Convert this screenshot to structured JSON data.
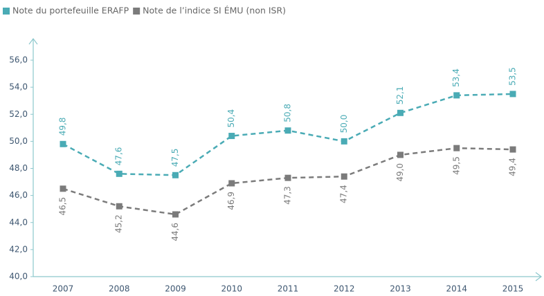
{
  "chart_data": {
    "type": "line",
    "categories": [
      "2007",
      "2008",
      "2009",
      "2010",
      "2011",
      "2012",
      "2013",
      "2014",
      "2015"
    ],
    "series": [
      {
        "name": "Note du portefeuille ERAFP",
        "color": "#4aabb5",
        "values": [
          49.8,
          47.6,
          47.5,
          50.4,
          50.8,
          50.0,
          52.1,
          53.4,
          53.5
        ],
        "value_labels": [
          "49,8",
          "47,6",
          "47,5",
          "50,4",
          "50,8",
          "50,0",
          "52,1",
          "53,4",
          "53,5"
        ]
      },
      {
        "name": "Note de l’indice SI ÉMU (non ISR)",
        "color": "#7b7b7b",
        "values": [
          46.5,
          45.2,
          44.6,
          46.9,
          47.3,
          47.4,
          49.0,
          49.5,
          49.4
        ],
        "value_labels": [
          "46,5",
          "45,2",
          "44,6",
          "46,9",
          "47,3",
          "47,4",
          "49,0",
          "49,5",
          "49,4"
        ]
      }
    ],
    "ylim": [
      40,
      56
    ],
    "yticks": [
      {
        "value": 40,
        "label": "40,0"
      },
      {
        "value": 42,
        "label": "42,0"
      },
      {
        "value": 44,
        "label": "44,0"
      },
      {
        "value": 46,
        "label": "46,0"
      },
      {
        "value": 48,
        "label": "48,0"
      },
      {
        "value": 50,
        "label": "50,0"
      },
      {
        "value": 52,
        "label": "52,0"
      },
      {
        "value": 54,
        "label": "54,0"
      },
      {
        "value": 56,
        "label": "56,0"
      }
    ],
    "legend": "top-left"
  }
}
